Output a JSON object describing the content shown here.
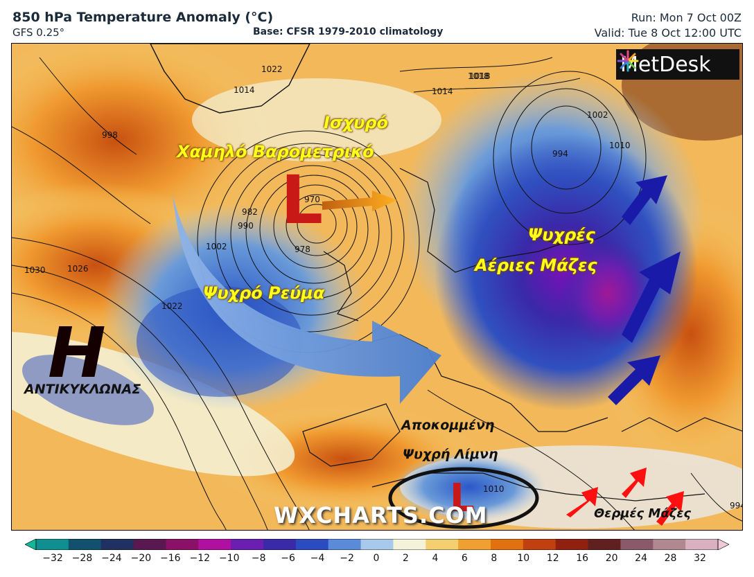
{
  "header": {
    "title": "850 hPa Temperature Anomaly (°C)",
    "model": "GFS 0.25°",
    "base": "Base: CFSR 1979-2010 climatology",
    "run": "Run: Mon 7 Oct 00Z",
    "valid": "Valid: Tue 8 Oct 12:00 UTC"
  },
  "logo": {
    "text": "MetDesk",
    "icon": "metdesk-burst-icon"
  },
  "watermark": "WXCHARTS.COM",
  "annotations": {
    "strong_low_line1": "Ισχυρό",
    "strong_low_line2": "Χαμηλό Βαρομετρικό",
    "low_symbol": "L",
    "cold_stream": "Ψυχρό Ρεύμα",
    "cold_masses_line1": "Ψυχρές",
    "cold_masses_line2": "Αέριες Μάζες",
    "high_symbol": "H",
    "anticyclone": "ΑΝΤΙΚΥΚΛΩΝΑΣ",
    "cutoff_line1": "Αποκομμένη",
    "cutoff_line2": "Ψυχρή Λίμνη",
    "cutoff_low_symbol": "L",
    "warm_masses": "Θερμές Μάζες"
  },
  "isobar_labels": [
    "1018",
    "1022",
    "1014",
    "998",
    "1030",
    "1026",
    "1022",
    "1002",
    "990",
    "982",
    "978",
    "970",
    "994",
    "1002",
    "1010",
    "1018",
    "1014",
    "1010",
    "994"
  ],
  "colorbar": {
    "ticks": [
      "−32",
      "−28",
      "−24",
      "−20",
      "−16",
      "−12",
      "−10",
      "−8",
      "−6",
      "−4",
      "−2",
      "0",
      "2",
      "4",
      "6",
      "8",
      "10",
      "12",
      "16",
      "20",
      "24",
      "28",
      "32"
    ],
    "colors": [
      "#10b89a",
      "#0f8f90",
      "#11516e",
      "#203060",
      "#5a1850",
      "#8a1068",
      "#b010a0",
      "#6a1fb0",
      "#3a2aa8",
      "#2a4cc0",
      "#5a8ad8",
      "#a8c8ec",
      "#f4f2d8",
      "#f4cf70",
      "#f0a030",
      "#e07010",
      "#c04010",
      "#902010",
      "#602020",
      "#8a5a6a",
      "#b08890",
      "#d8b0c0",
      "#f0c8d8"
    ]
  }
}
